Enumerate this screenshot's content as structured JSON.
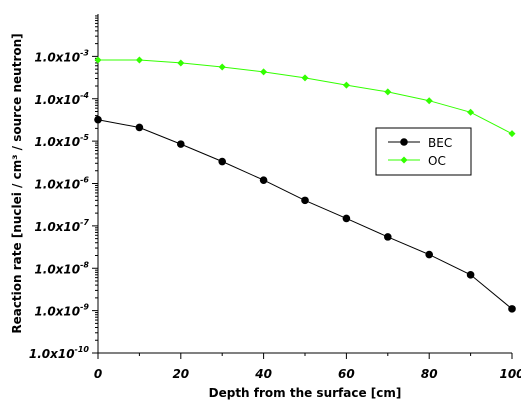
{
  "chart_data": {
    "type": "line",
    "title": "",
    "xlabel": "Depth from the surface [cm]",
    "ylabel": "Reaction rate [nuclei / cm³ / source neutron]",
    "xlim": [
      0,
      100
    ],
    "ylim": [
      1e-10,
      0.01
    ],
    "y_scale": "log",
    "grid": false,
    "legend_position": "right-middle",
    "x_ticks": [
      0,
      20,
      40,
      60,
      80,
      100
    ],
    "x_tick_labels": [
      "0",
      "20",
      "40",
      "60",
      "80",
      "100"
    ],
    "y_ticks": [
      1e-10,
      1e-09,
      1e-08,
      1e-07,
      1e-06,
      1e-05,
      0.0001,
      0.001
    ],
    "y_tick_labels": [
      {
        "mantissa": "1.0x10",
        "exponent": "-10"
      },
      {
        "mantissa": "1.0x10",
        "exponent": "-9"
      },
      {
        "mantissa": "1.0x10",
        "exponent": "-8"
      },
      {
        "mantissa": "1.0x10",
        "exponent": "-7"
      },
      {
        "mantissa": "1.0x10",
        "exponent": "-6"
      },
      {
        "mantissa": "1.0x10",
        "exponent": "-5"
      },
      {
        "mantissa": "1.0x10",
        "exponent": "-4"
      },
      {
        "mantissa": "1.0x10",
        "exponent": "-3"
      }
    ],
    "x": [
      0,
      10,
      20,
      30,
      40,
      50,
      60,
      70,
      80,
      90,
      100
    ],
    "series": [
      {
        "name": "BEC",
        "color": "#000000",
        "marker": "circle",
        "values": [
          3.2e-05,
          2.1e-05,
          8.5e-06,
          3.3e-06,
          1.2e-06,
          4e-07,
          1.5e-07,
          5.5e-08,
          2.1e-08,
          7e-09,
          1.1e-09
        ]
      },
      {
        "name": "OC",
        "color": "#33ff00",
        "marker": "diamond",
        "values": [
          0.00082,
          0.00082,
          0.0007,
          0.00056,
          0.00043,
          0.00031,
          0.00021,
          0.000145,
          9e-05,
          4.8e-05,
          1.5e-05
        ]
      }
    ]
  }
}
